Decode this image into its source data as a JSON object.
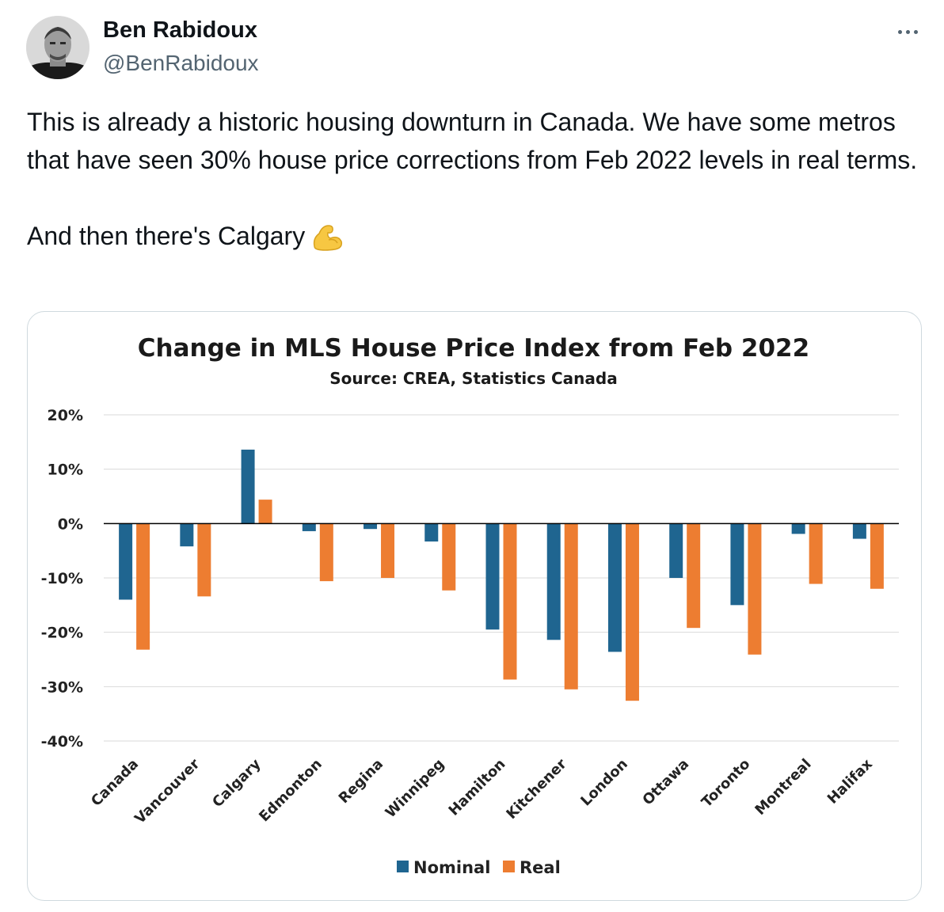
{
  "tweet": {
    "author_name": "Ben Rabidoux",
    "author_handle": "@BenRabidoux",
    "paragraph_1": "This is already a historic housing downturn in Canada.  We have some metros that have seen 30% house price corrections from Feb 2022 levels in real terms.",
    "paragraph_2": "And then there's Calgary",
    "emoji": "flexed-biceps-emoji"
  },
  "icons": {
    "more": "more-options-icon",
    "avatar": "avatar"
  },
  "colors": {
    "nominal": "#1f6590",
    "real": "#ed7d31",
    "handle": "#536471"
  },
  "chart_data": {
    "type": "bar",
    "title": "Change in MLS House Price Index from Feb 2022",
    "subtitle": "Source: CREA, Statistics Canada",
    "categories": [
      "Canada",
      "Vancouver",
      "Calgary",
      "Edmonton",
      "Regina",
      "Winnipeg",
      "Hamilton",
      "Kitchener",
      "London",
      "Ottawa",
      "Toronto",
      "Montreal",
      "Halifax"
    ],
    "series": [
      {
        "name": "Nominal",
        "values": [
          -14,
          -4.2,
          13.6,
          -1.4,
          -1,
          -3.3,
          -19.5,
          -21.4,
          -23.6,
          -10,
          -15,
          -1.9,
          -2.8
        ]
      },
      {
        "name": "Real",
        "values": [
          -23.2,
          -13.4,
          4.4,
          -10.6,
          -10,
          -12.3,
          -28.7,
          -30.5,
          -32.6,
          -19.2,
          -24.1,
          -11.1,
          -12
        ]
      }
    ],
    "ylim": [
      -40,
      20
    ],
    "yticks": [
      20,
      10,
      0,
      -10,
      -20,
      -30,
      -40
    ],
    "ytick_labels": [
      "20%",
      "10%",
      "0%",
      "-10%",
      "-20%",
      "-30%",
      "-40%"
    ],
    "grid": true,
    "legend_position": "bottom-center"
  }
}
